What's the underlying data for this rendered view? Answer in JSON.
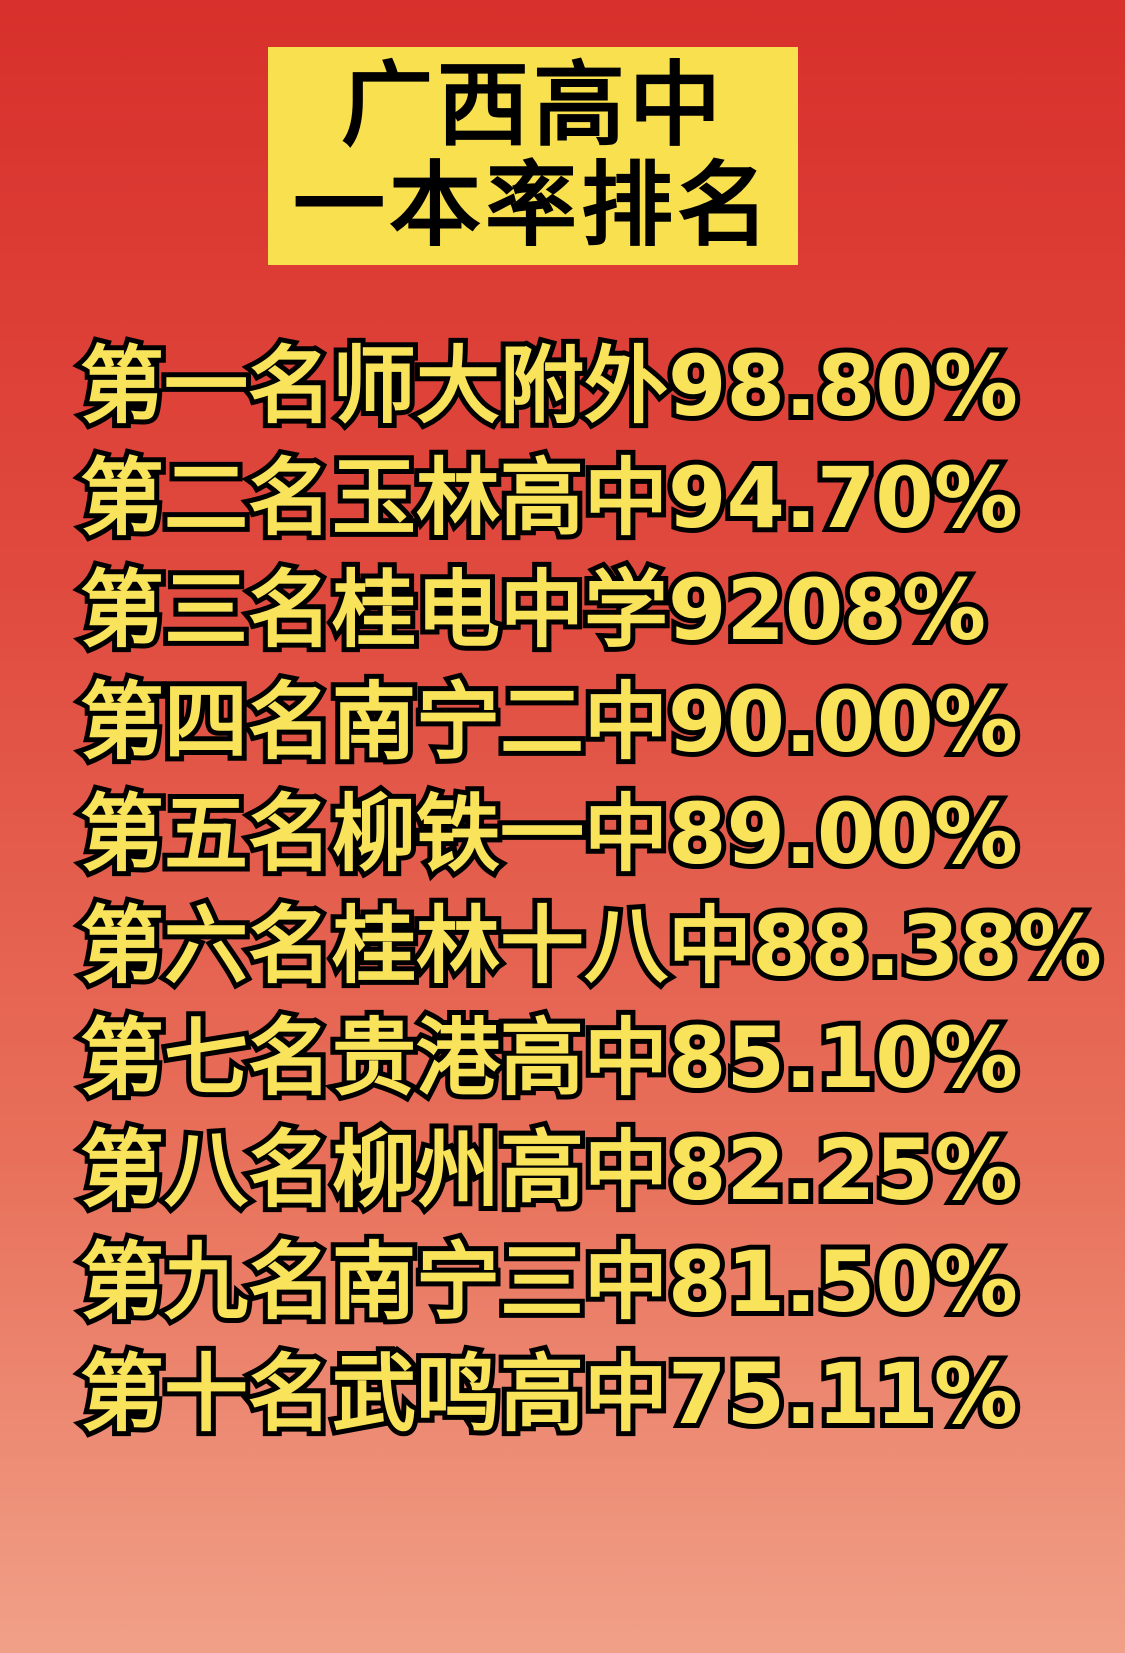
{
  "title": {
    "line1": "广西高中",
    "line2": "一本率排名"
  },
  "colors": {
    "title_bg": "#f9e04e",
    "text": "#f8e35a",
    "outline": "#000000",
    "bg_top": "#d8302c",
    "bg_bottom": "#f1a088"
  },
  "rankings": [
    {
      "rank": "第一名",
      "school": "师大附外",
      "rate": "98.80%"
    },
    {
      "rank": "第二名",
      "school": "玉林高中",
      "rate": "94.70%"
    },
    {
      "rank": "第三名",
      "school": "桂电中学",
      "rate": "9208%"
    },
    {
      "rank": "第四名",
      "school": "南宁二中",
      "rate": "90.00%"
    },
    {
      "rank": "第五名",
      "school": "柳铁一中",
      "rate": "89.00%"
    },
    {
      "rank": "第六名",
      "school": "桂林十八中",
      "rate": "88.38%"
    },
    {
      "rank": "第七名",
      "school": "贵港高中",
      "rate": "85.10%"
    },
    {
      "rank": "第八名",
      "school": "柳州高中",
      "rate": "82.25%"
    },
    {
      "rank": "第九名",
      "school": "南宁三中",
      "rate": "81.50%"
    },
    {
      "rank": "第十名",
      "school": "武鸣高中",
      "rate": "75.11%"
    }
  ]
}
